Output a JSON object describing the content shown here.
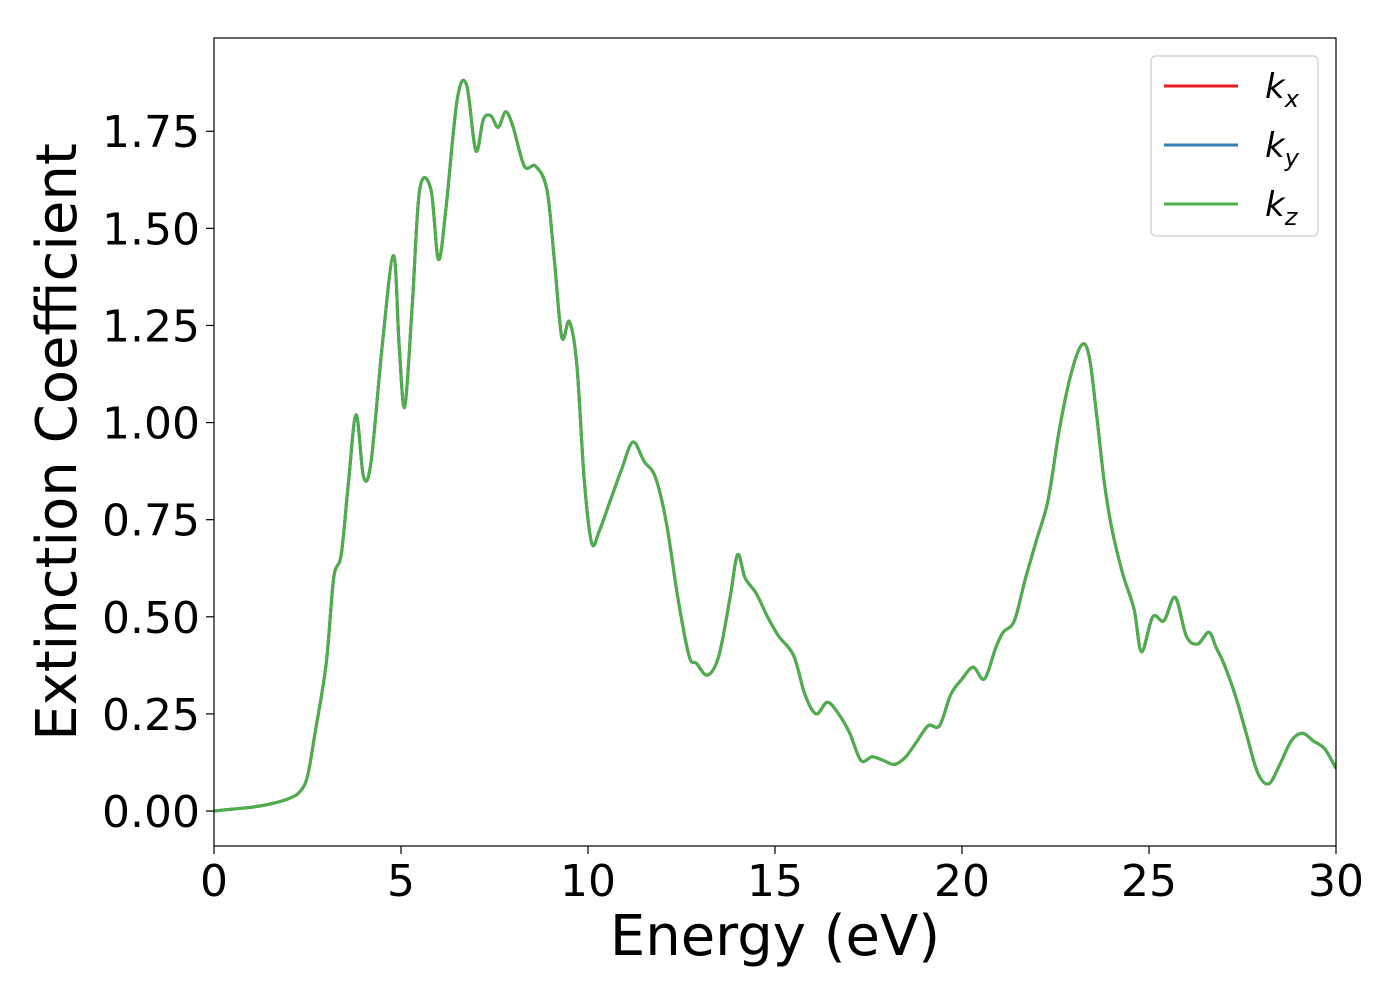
{
  "chart_data": {
    "type": "line",
    "xlabel": "Energy (eV)",
    "ylabel": "Extinction Coefficient",
    "xlim": [
      0,
      30
    ],
    "ylim": [
      -0.09,
      1.99
    ],
    "xticks": [
      "0",
      "5",
      "10",
      "15",
      "20",
      "25",
      "30"
    ],
    "yticks": [
      "0.00",
      "0.25",
      "0.50",
      "0.75",
      "1.00",
      "1.25",
      "1.50",
      "1.75"
    ],
    "grid": false,
    "legend_position": "top-right",
    "x": [
      0,
      0.5,
      1.0,
      1.5,
      2.0,
      2.3,
      2.5,
      2.7,
      3.0,
      3.2,
      3.4,
      3.6,
      3.8,
      4.0,
      4.2,
      4.5,
      4.8,
      4.95,
      5.1,
      5.3,
      5.5,
      5.8,
      6.0,
      6.2,
      6.5,
      6.75,
      7.0,
      7.2,
      7.4,
      7.6,
      7.8,
      8.0,
      8.3,
      8.6,
      8.9,
      9.1,
      9.3,
      9.5,
      9.7,
      9.9,
      10.1,
      10.3,
      10.6,
      10.9,
      11.2,
      11.5,
      11.8,
      12.1,
      12.4,
      12.7,
      12.9,
      13.2,
      13.5,
      13.8,
      14.0,
      14.2,
      14.5,
      14.8,
      15.1,
      15.5,
      15.8,
      16.1,
      16.4,
      16.7,
      17.0,
      17.3,
      17.6,
      17.9,
      18.2,
      18.5,
      18.8,
      19.1,
      19.4,
      19.7,
      20.0,
      20.3,
      20.6,
      20.9,
      21.1,
      21.4,
      21.7,
      22.0,
      22.3,
      22.6,
      22.9,
      23.2,
      23.4,
      23.6,
      23.8,
      24.0,
      24.3,
      24.6,
      24.8,
      25.1,
      25.4,
      25.7,
      26.0,
      26.3,
      26.6,
      26.8,
      27.0,
      27.3,
      27.6,
      27.9,
      28.2,
      28.5,
      28.8,
      29.1,
      29.4,
      29.7,
      30.0
    ],
    "series": [
      {
        "name": "k_x",
        "legend": {
          "base": "k",
          "sub": "x"
        },
        "color": "#e41a1c",
        "values": [
          0.0,
          0.005,
          0.01,
          0.018,
          0.032,
          0.05,
          0.09,
          0.2,
          0.38,
          0.6,
          0.66,
          0.85,
          1.02,
          0.86,
          0.9,
          1.2,
          1.43,
          1.2,
          1.04,
          1.3,
          1.6,
          1.6,
          1.42,
          1.55,
          1.83,
          1.87,
          1.7,
          1.78,
          1.79,
          1.76,
          1.8,
          1.76,
          1.66,
          1.66,
          1.6,
          1.42,
          1.22,
          1.26,
          1.15,
          0.85,
          0.69,
          0.72,
          0.8,
          0.88,
          0.95,
          0.9,
          0.86,
          0.74,
          0.55,
          0.4,
          0.38,
          0.35,
          0.4,
          0.55,
          0.66,
          0.6,
          0.56,
          0.5,
          0.45,
          0.4,
          0.3,
          0.25,
          0.28,
          0.25,
          0.2,
          0.13,
          0.14,
          0.13,
          0.12,
          0.14,
          0.18,
          0.22,
          0.22,
          0.3,
          0.34,
          0.37,
          0.34,
          0.42,
          0.46,
          0.49,
          0.6,
          0.7,
          0.8,
          0.98,
          1.12,
          1.2,
          1.17,
          1.02,
          0.85,
          0.73,
          0.61,
          0.52,
          0.41,
          0.5,
          0.49,
          0.55,
          0.45,
          0.43,
          0.46,
          0.42,
          0.38,
          0.3,
          0.2,
          0.1,
          0.07,
          0.12,
          0.18,
          0.2,
          0.18,
          0.16,
          0.11
        ]
      },
      {
        "name": "k_y",
        "legend": {
          "base": "k",
          "sub": "y"
        },
        "color": "#377eb8",
        "values": [
          0.0,
          0.005,
          0.01,
          0.018,
          0.032,
          0.05,
          0.09,
          0.2,
          0.38,
          0.6,
          0.66,
          0.85,
          1.02,
          0.86,
          0.9,
          1.2,
          1.43,
          1.2,
          1.04,
          1.3,
          1.6,
          1.6,
          1.42,
          1.55,
          1.83,
          1.87,
          1.7,
          1.78,
          1.79,
          1.76,
          1.8,
          1.76,
          1.66,
          1.66,
          1.6,
          1.42,
          1.22,
          1.26,
          1.15,
          0.85,
          0.69,
          0.72,
          0.8,
          0.88,
          0.95,
          0.9,
          0.86,
          0.74,
          0.55,
          0.4,
          0.38,
          0.35,
          0.4,
          0.55,
          0.66,
          0.6,
          0.56,
          0.5,
          0.45,
          0.4,
          0.3,
          0.25,
          0.28,
          0.25,
          0.2,
          0.13,
          0.14,
          0.13,
          0.12,
          0.14,
          0.18,
          0.22,
          0.22,
          0.3,
          0.34,
          0.37,
          0.34,
          0.42,
          0.46,
          0.49,
          0.6,
          0.7,
          0.8,
          0.98,
          1.12,
          1.2,
          1.17,
          1.02,
          0.85,
          0.73,
          0.61,
          0.52,
          0.41,
          0.5,
          0.49,
          0.55,
          0.45,
          0.43,
          0.46,
          0.42,
          0.38,
          0.3,
          0.2,
          0.1,
          0.07,
          0.12,
          0.18,
          0.2,
          0.18,
          0.16,
          0.11
        ]
      },
      {
        "name": "k_z",
        "legend": {
          "base": "k",
          "sub": "z"
        },
        "color": "#4daf4a",
        "values": [
          0.0,
          0.005,
          0.01,
          0.018,
          0.032,
          0.05,
          0.09,
          0.2,
          0.38,
          0.6,
          0.66,
          0.85,
          1.02,
          0.86,
          0.9,
          1.2,
          1.43,
          1.2,
          1.04,
          1.3,
          1.6,
          1.6,
          1.42,
          1.55,
          1.83,
          1.87,
          1.7,
          1.78,
          1.79,
          1.76,
          1.8,
          1.76,
          1.66,
          1.66,
          1.6,
          1.42,
          1.22,
          1.26,
          1.15,
          0.85,
          0.69,
          0.72,
          0.8,
          0.88,
          0.95,
          0.9,
          0.86,
          0.74,
          0.55,
          0.4,
          0.38,
          0.35,
          0.4,
          0.55,
          0.66,
          0.6,
          0.56,
          0.5,
          0.45,
          0.4,
          0.3,
          0.25,
          0.28,
          0.25,
          0.2,
          0.13,
          0.14,
          0.13,
          0.12,
          0.14,
          0.18,
          0.22,
          0.22,
          0.3,
          0.34,
          0.37,
          0.34,
          0.42,
          0.46,
          0.49,
          0.6,
          0.7,
          0.8,
          0.98,
          1.12,
          1.2,
          1.17,
          1.02,
          0.85,
          0.73,
          0.61,
          0.52,
          0.41,
          0.5,
          0.49,
          0.55,
          0.45,
          0.43,
          0.46,
          0.42,
          0.38,
          0.3,
          0.2,
          0.1,
          0.07,
          0.12,
          0.18,
          0.2,
          0.18,
          0.16,
          0.11
        ]
      }
    ]
  }
}
